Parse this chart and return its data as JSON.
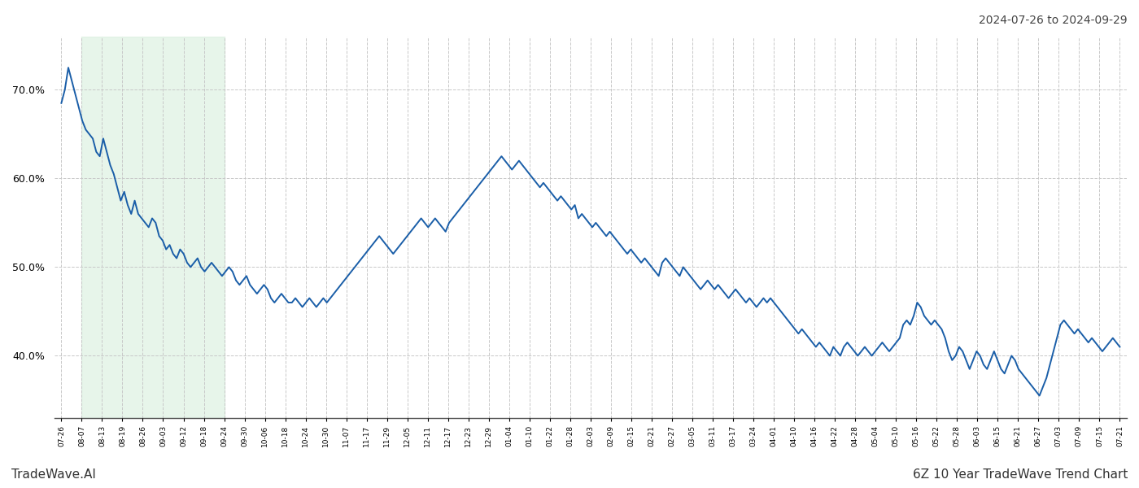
{
  "title_right": "2024-07-26 to 2024-09-29",
  "footer_left": "TradeWave.AI",
  "footer_right": "6Z 10 Year TradeWave Trend Chart",
  "line_color": "#1a5ea8",
  "line_width": 1.4,
  "shade_color": "#d4edda",
  "shade_alpha": 0.55,
  "background_color": "#ffffff",
  "grid_color": "#c8c8c8",
  "ylim": [
    33,
    76
  ],
  "yticks": [
    40.0,
    50.0,
    60.0,
    70.0
  ],
  "x_labels": [
    "07-26",
    "08-07",
    "08-13",
    "08-19",
    "08-26",
    "09-03",
    "09-12",
    "09-18",
    "09-24",
    "09-30",
    "10-06",
    "10-18",
    "10-24",
    "10-30",
    "11-07",
    "11-17",
    "11-29",
    "12-05",
    "12-11",
    "12-17",
    "12-23",
    "12-29",
    "01-04",
    "01-10",
    "01-22",
    "01-28",
    "02-03",
    "02-09",
    "02-15",
    "02-21",
    "02-27",
    "03-05",
    "03-11",
    "03-17",
    "03-24",
    "04-01",
    "04-10",
    "04-16",
    "04-22",
    "04-28",
    "05-04",
    "05-10",
    "05-16",
    "05-22",
    "05-28",
    "06-03",
    "06-15",
    "06-21",
    "06-27",
    "07-03",
    "07-09",
    "07-15",
    "07-21"
  ],
  "shade_x_start": "08-07",
  "shade_x_end": "09-24",
  "values": [
    68.5,
    70.0,
    72.5,
    71.0,
    69.5,
    68.0,
    66.5,
    65.5,
    65.0,
    64.5,
    63.0,
    62.5,
    64.5,
    63.0,
    61.5,
    60.5,
    59.0,
    57.5,
    58.5,
    57.0,
    56.0,
    57.5,
    56.0,
    55.5,
    55.0,
    54.5,
    55.5,
    55.0,
    53.5,
    53.0,
    52.0,
    52.5,
    51.5,
    51.0,
    52.0,
    51.5,
    50.5,
    50.0,
    50.5,
    51.0,
    50.0,
    49.5,
    50.0,
    50.5,
    50.0,
    49.5,
    49.0,
    49.5,
    50.0,
    49.5,
    48.5,
    48.0,
    48.5,
    49.0,
    48.0,
    47.5,
    47.0,
    47.5,
    48.0,
    47.5,
    46.5,
    46.0,
    46.5,
    47.0,
    46.5,
    46.0,
    46.0,
    46.5,
    46.0,
    45.5,
    46.0,
    46.5,
    46.0,
    45.5,
    46.0,
    46.5,
    46.0,
    46.5,
    47.0,
    47.5,
    48.0,
    48.5,
    49.0,
    49.5,
    50.0,
    50.5,
    51.0,
    51.5,
    52.0,
    52.5,
    53.0,
    53.5,
    53.0,
    52.5,
    52.0,
    51.5,
    52.0,
    52.5,
    53.0,
    53.5,
    54.0,
    54.5,
    55.0,
    55.5,
    55.0,
    54.5,
    55.0,
    55.5,
    55.0,
    54.5,
    54.0,
    55.0,
    55.5,
    56.0,
    56.5,
    57.0,
    57.5,
    58.0,
    58.5,
    59.0,
    59.5,
    60.0,
    60.5,
    61.0,
    61.5,
    62.0,
    62.5,
    62.0,
    61.5,
    61.0,
    61.5,
    62.0,
    61.5,
    61.0,
    60.5,
    60.0,
    59.5,
    59.0,
    59.5,
    59.0,
    58.5,
    58.0,
    57.5,
    58.0,
    57.5,
    57.0,
    56.5,
    57.0,
    55.5,
    56.0,
    55.5,
    55.0,
    54.5,
    55.0,
    54.5,
    54.0,
    53.5,
    54.0,
    53.5,
    53.0,
    52.5,
    52.0,
    51.5,
    52.0,
    51.5,
    51.0,
    50.5,
    51.0,
    50.5,
    50.0,
    49.5,
    49.0,
    50.5,
    51.0,
    50.5,
    50.0,
    49.5,
    49.0,
    50.0,
    49.5,
    49.0,
    48.5,
    48.0,
    47.5,
    48.0,
    48.5,
    48.0,
    47.5,
    48.0,
    47.5,
    47.0,
    46.5,
    47.0,
    47.5,
    47.0,
    46.5,
    46.0,
    46.5,
    46.0,
    45.5,
    46.0,
    46.5,
    46.0,
    46.5,
    46.0,
    45.5,
    45.0,
    44.5,
    44.0,
    43.5,
    43.0,
    42.5,
    43.0,
    42.5,
    42.0,
    41.5,
    41.0,
    41.5,
    41.0,
    40.5,
    40.0,
    41.0,
    40.5,
    40.0,
    41.0,
    41.5,
    41.0,
    40.5,
    40.0,
    40.5,
    41.0,
    40.5,
    40.0,
    40.5,
    41.0,
    41.5,
    41.0,
    40.5,
    41.0,
    41.5,
    42.0,
    43.5,
    44.0,
    43.5,
    44.5,
    46.0,
    45.5,
    44.5,
    44.0,
    43.5,
    44.0,
    43.5,
    43.0,
    42.0,
    40.5,
    39.5,
    40.0,
    41.0,
    40.5,
    39.5,
    38.5,
    39.5,
    40.5,
    40.0,
    39.0,
    38.5,
    39.5,
    40.5,
    39.5,
    38.5,
    38.0,
    39.0,
    40.0,
    39.5,
    38.5,
    38.0,
    37.5,
    37.0,
    36.5,
    36.0,
    35.5,
    36.5,
    37.5,
    39.0,
    40.5,
    42.0,
    43.5,
    44.0,
    43.5,
    43.0,
    42.5,
    43.0,
    42.5,
    42.0,
    41.5,
    42.0,
    41.5,
    41.0,
    40.5,
    41.0,
    41.5,
    42.0,
    41.5,
    41.0
  ]
}
